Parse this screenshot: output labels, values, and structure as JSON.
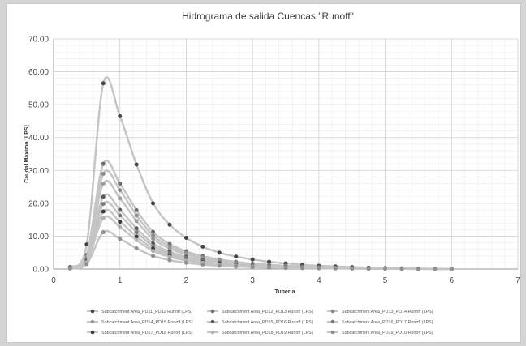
{
  "chart_data": {
    "type": "line",
    "title": "Hidrograma  de salida Cuencas \"Runoff\"",
    "xlabel": "Tuberia",
    "ylabel": "Caudal Máximo [LPS]",
    "xlim": [
      0,
      7
    ],
    "ylim": [
      0,
      70
    ],
    "x_ticks": [
      "0",
      "1",
      "2",
      "3",
      "4",
      "5",
      "6",
      "7"
    ],
    "y_ticks": [
      "0.00",
      "10.00",
      "20.00",
      "30.00",
      "40.00",
      "50.00",
      "60.00",
      "70.00"
    ],
    "grid": true,
    "legend_position": "bottom",
    "x": [
      0.25,
      0.5,
      0.75,
      1.0,
      1.25,
      1.5,
      1.75,
      2.0,
      2.25,
      2.5,
      2.75,
      3.0,
      3.25,
      3.5,
      3.75,
      4.0,
      4.25,
      4.5,
      4.75,
      5.0,
      5.25,
      5.5,
      5.75,
      6.0
    ],
    "series": [
      {
        "name": "Subcatchment Area_PD11_PD12 Runoff (LPS)",
        "color": "#444444",
        "values": [
          0.6,
          7.5,
          56.5,
          46.5,
          31.8,
          20.0,
          13.5,
          9.5,
          6.8,
          5.0,
          3.8,
          2.9,
          2.2,
          1.7,
          1.3,
          1.0,
          0.8,
          0.6,
          0.4,
          0.3,
          0.2,
          0.15,
          0.1,
          0.05
        ]
      },
      {
        "name": "Subcatchment Area_PD12_PD13 Runoff (LPS)",
        "color": "#6a6a6a",
        "values": [
          0.4,
          4.3,
          32.0,
          26.0,
          17.9,
          11.3,
          7.6,
          5.4,
          3.9,
          2.9,
          2.2,
          1.6,
          1.3,
          1.0,
          0.75,
          0.55,
          0.45,
          0.35,
          0.25,
          0.2,
          0.15,
          0.1,
          0.05,
          0.03
        ]
      },
      {
        "name": "Subcatchment Area_PD13_PD14 Runoff (LPS)",
        "color": "#8a8a8a",
        "values": [
          0.35,
          3.8,
          29.0,
          24.0,
          16.3,
          10.2,
          6.9,
          4.9,
          3.5,
          2.6,
          2.0,
          1.5,
          1.1,
          0.85,
          0.65,
          0.5,
          0.4,
          0.3,
          0.22,
          0.17,
          0.12,
          0.08,
          0.05,
          0.03
        ]
      },
      {
        "name": "Subcatchment Area_PD14_PD15 Runoff (LPS)",
        "color": "#9a9a9a",
        "values": [
          0.3,
          3.4,
          26.0,
          21.5,
          14.6,
          9.2,
          6.2,
          4.4,
          3.2,
          2.3,
          1.8,
          1.3,
          1.0,
          0.78,
          0.6,
          0.45,
          0.35,
          0.27,
          0.2,
          0.15,
          0.1,
          0.07,
          0.05,
          0.03
        ]
      },
      {
        "name": "Subcatchment Area_PD15_PD16 Runoff (LPS)",
        "color": "#5a5a5a",
        "values": [
          0.25,
          2.9,
          22.0,
          18.0,
          12.4,
          7.8,
          5.3,
          3.7,
          2.7,
          2.0,
          1.5,
          1.1,
          0.85,
          0.65,
          0.5,
          0.38,
          0.3,
          0.23,
          0.17,
          0.12,
          0.09,
          0.06,
          0.04,
          0.02
        ]
      },
      {
        "name": "Subcatchment Area_PD16_PD17 Runoff (LPS)",
        "color": "#7a7a7a",
        "values": [
          0.25,
          2.6,
          19.8,
          16.3,
          11.2,
          7.0,
          4.7,
          3.3,
          2.4,
          1.8,
          1.35,
          1.0,
          0.77,
          0.58,
          0.45,
          0.34,
          0.27,
          0.2,
          0.15,
          0.11,
          0.08,
          0.05,
          0.03,
          0.02
        ]
      },
      {
        "name": "Subcatchment Area_PD17_PD18 Runoff (LPS)",
        "color": "#3a3a3a",
        "values": [
          0.2,
          2.3,
          17.5,
          14.4,
          9.9,
          6.2,
          4.2,
          2.9,
          2.1,
          1.6,
          1.2,
          0.9,
          0.68,
          0.52,
          0.4,
          0.3,
          0.24,
          0.18,
          0.13,
          0.1,
          0.07,
          0.05,
          0.03,
          0.02
        ]
      },
      {
        "name": "Subcatchment Area_PD18_PD19 Runoff (LPS)",
        "color": "#b0b0b0",
        "values": [
          0.2,
          2.1,
          15.5,
          12.8,
          8.8,
          5.5,
          3.7,
          2.6,
          1.9,
          1.4,
          1.05,
          0.8,
          0.6,
          0.46,
          0.35,
          0.27,
          0.21,
          0.16,
          0.12,
          0.09,
          0.06,
          0.04,
          0.03,
          0.02
        ]
      },
      {
        "name": "Subcatchment Area_PD19_PD10 Runoff (LPS)",
        "color": "#8f8f8f",
        "values": [
          0.15,
          1.5,
          11.2,
          9.2,
          6.3,
          4.0,
          2.7,
          1.9,
          1.35,
          1.0,
          0.76,
          0.57,
          0.43,
          0.33,
          0.25,
          0.19,
          0.15,
          0.11,
          0.08,
          0.06,
          0.04,
          0.03,
          0.02,
          0.01
        ]
      }
    ]
  }
}
